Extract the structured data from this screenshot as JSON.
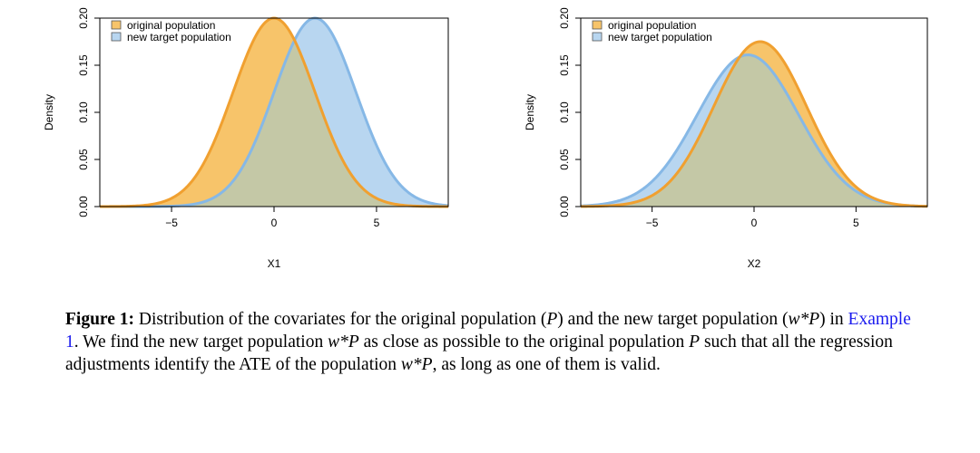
{
  "colors": {
    "original_fill": "#f7c46a",
    "original_line": "#f0a030",
    "target_fill": "#b8d6f0",
    "target_line": "#86b8e6",
    "overlap_fill": "#c4c8a6",
    "link": "#1a1aee"
  },
  "chart_data": [
    {
      "type": "area",
      "xlabel": "X1",
      "ylabel": "Density",
      "xlim": [
        -8.5,
        8.5
      ],
      "ylim": [
        0,
        0.2
      ],
      "xticks": [
        -5,
        0,
        5
      ],
      "yticks": [
        0.0,
        0.05,
        0.1,
        0.15,
        0.2
      ],
      "ytick_labels": [
        "0.00",
        "0.05",
        "0.10",
        "0.15",
        "0.20"
      ],
      "grid": false,
      "legend": {
        "position": "top-left",
        "entries": [
          "original population",
          "new target population"
        ]
      },
      "series": [
        {
          "name": "original population",
          "distribution": "normal",
          "mean": 0,
          "sd": 2,
          "peak_density": 0.2
        },
        {
          "name": "new target population",
          "distribution": "normal",
          "mean": 2,
          "sd": 2,
          "peak_density": 0.2
        }
      ]
    },
    {
      "type": "area",
      "xlabel": "X2",
      "ylabel": "Density",
      "xlim": [
        -8.5,
        8.5
      ],
      "ylim": [
        0,
        0.2
      ],
      "xticks": [
        -5,
        0,
        5
      ],
      "yticks": [
        0.0,
        0.05,
        0.1,
        0.15,
        0.2
      ],
      "ytick_labels": [
        "0.00",
        "0.05",
        "0.10",
        "0.15",
        "0.20"
      ],
      "grid": false,
      "legend": {
        "position": "top-left",
        "entries": [
          "original population",
          "new target population"
        ]
      },
      "series": [
        {
          "name": "original population",
          "distribution": "normal",
          "mean": 0.3,
          "sd": 2.28,
          "peak_density": 0.175
        },
        {
          "name": "new target population",
          "distribution": "normal",
          "mean": -0.3,
          "sd": 2.48,
          "peak_density": 0.161
        }
      ]
    }
  ],
  "caption": {
    "label": "Figure 1:",
    "part1": " Distribution of the covariates for the original population (",
    "m_P1": "P",
    "part2": ") and the new target population (",
    "m_wP1": "w*P",
    "part3": ") in ",
    "link_text": "Example 1",
    "part4": ". We find the new target population ",
    "m_wP2": "w*P",
    "part5": " as close as possible to the original population ",
    "m_P2": "P",
    "part6": " such that all the regression adjustments identify the ATE of the population ",
    "m_wP3": "w*P",
    "part7": ", as long as one of them is valid."
  }
}
